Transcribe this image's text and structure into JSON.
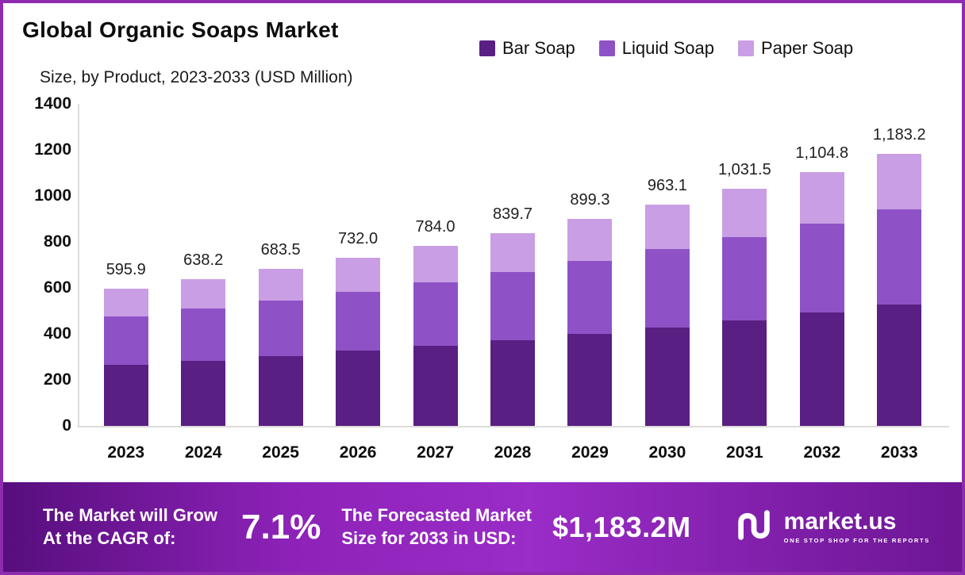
{
  "title": "Global Organic Soaps Market",
  "subtitle": "Size, by Product, 2023-2033 (USD Million)",
  "legend": [
    {
      "label": "Bar Soap",
      "color": "#5a1f82"
    },
    {
      "label": "Liquid Soap",
      "color": "#8e52c6"
    },
    {
      "label": "Paper Soap",
      "color": "#c99ee4"
    }
  ],
  "chart_data": {
    "type": "bar",
    "stacked": true,
    "title": "Global Organic Soaps Market Size, by Product, 2023-2033 (USD Million)",
    "categories": [
      "2023",
      "2024",
      "2025",
      "2026",
      "2027",
      "2028",
      "2029",
      "2030",
      "2031",
      "2032",
      "2033"
    ],
    "series": [
      {
        "name": "Bar Soap",
        "color": "#5a1f82",
        "values": [
          265.0,
          284.0,
          304.0,
          326.0,
          349.0,
          374.0,
          400.0,
          429.0,
          459.0,
          492.0,
          527.0
        ]
      },
      {
        "name": "Liquid Soap",
        "color": "#8e52c6",
        "values": [
          210.0,
          225.0,
          241.0,
          258.0,
          276.0,
          296.0,
          317.0,
          339.0,
          363.0,
          389.0,
          416.0
        ]
      },
      {
        "name": "Paper Soap",
        "color": "#c99ee4",
        "values": [
          120.9,
          129.2,
          138.5,
          148.0,
          159.0,
          169.7,
          182.3,
          195.1,
          209.5,
          223.8,
          240.2
        ]
      }
    ],
    "totals": [
      595.9,
      638.2,
      683.5,
      732.0,
      784.0,
      839.7,
      899.3,
      963.1,
      1031.5,
      1104.8,
      1183.2
    ],
    "total_labels": [
      "595.9",
      "638.2",
      "683.5",
      "732.0",
      "784.0",
      "839.7",
      "899.3",
      "963.1",
      "1,031.5",
      "1,104.8",
      "1,183.2"
    ],
    "ylim": [
      0,
      1400
    ],
    "yticks": [
      0,
      200,
      400,
      600,
      800,
      1000,
      1200,
      1400
    ],
    "grid": false,
    "legend_position": "top-right"
  },
  "banner": {
    "cagr_line1": "The Market will Grow",
    "cagr_line2": "At the CAGR of:",
    "cagr_value": "7.1%",
    "forecast_line1": "The Forecasted Market",
    "forecast_line2": "Size for 2033 in USD:",
    "forecast_value": "$1,183.2M",
    "brand": "market.us",
    "brand_tagline": "ONE STOP SHOP FOR THE REPORTS"
  }
}
